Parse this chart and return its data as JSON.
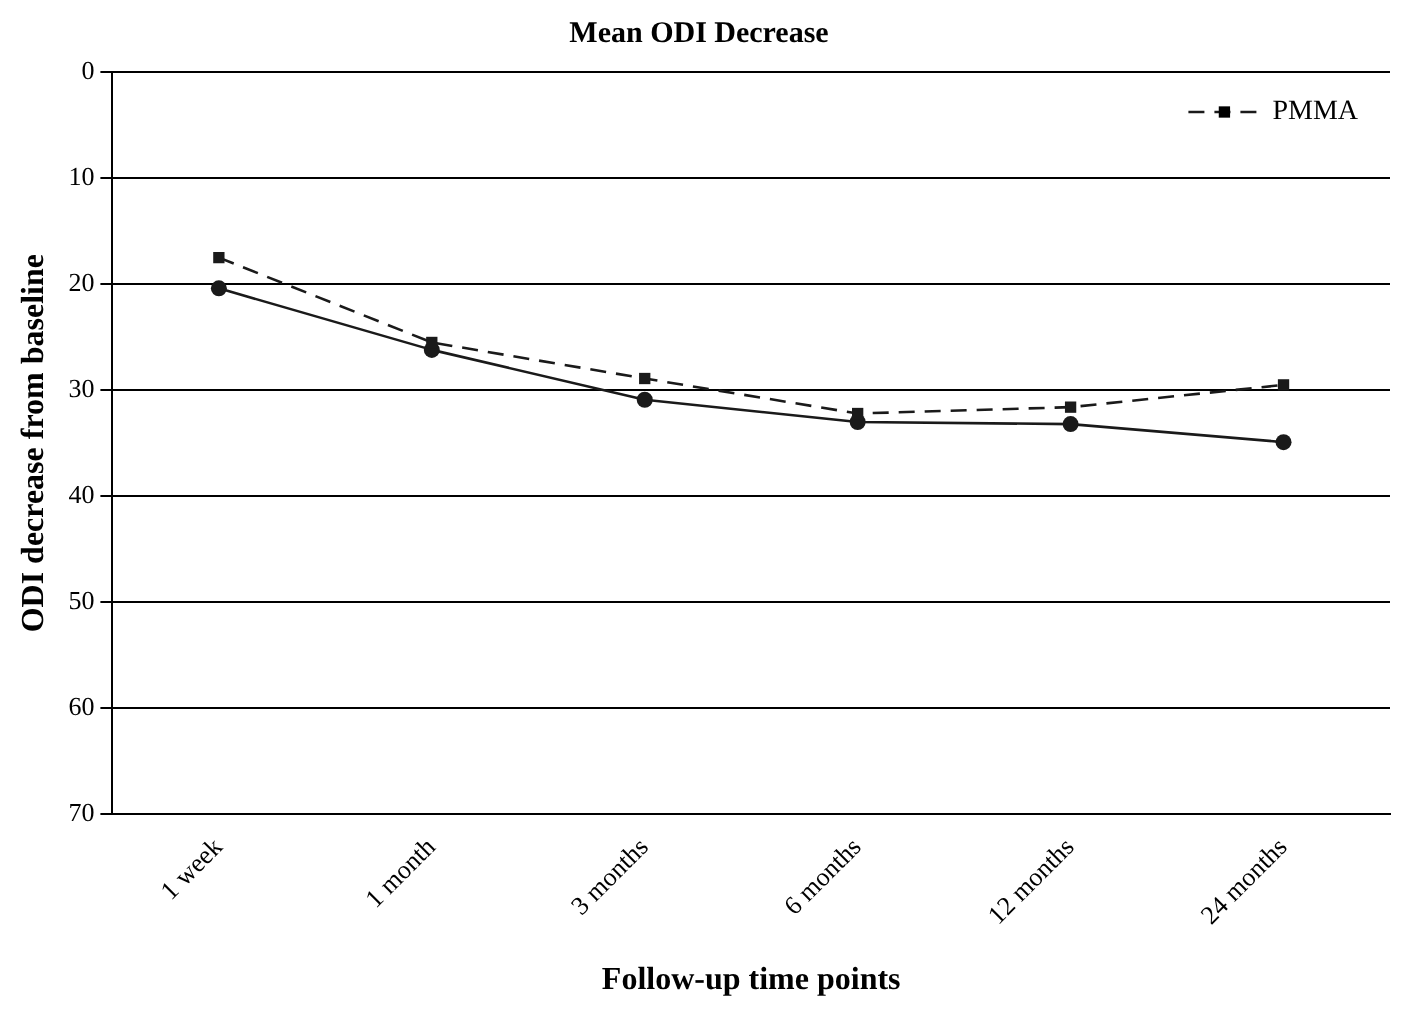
{
  "chart_data": {
    "type": "line",
    "title": "Mean ODI Decrease",
    "xlabel": "Follow-up time points",
    "ylabel": "ODI decrease from baseline",
    "categories": [
      "1 week",
      "1 month",
      "3 months",
      "6 months",
      "12 months",
      "24 months"
    ],
    "series": [
      {
        "color": "#1a1a1a",
        "marker": "circle",
        "line_style": "solid",
        "values": [
          20.4,
          26.2,
          30.9,
          33.0,
          33.2,
          34.9
        ]
      },
      {
        "name": "PMMA",
        "color": "#1a1a1a",
        "marker": "square",
        "line_style": "dashed",
        "values": [
          17.5,
          25.5,
          28.9,
          32.2,
          31.6,
          29.5
        ]
      }
    ],
    "ylim": [
      70,
      0
    ],
    "yticks": [
      0,
      10,
      20,
      30,
      40,
      50,
      60,
      70
    ],
    "grid": "y",
    "legend": "top right"
  }
}
